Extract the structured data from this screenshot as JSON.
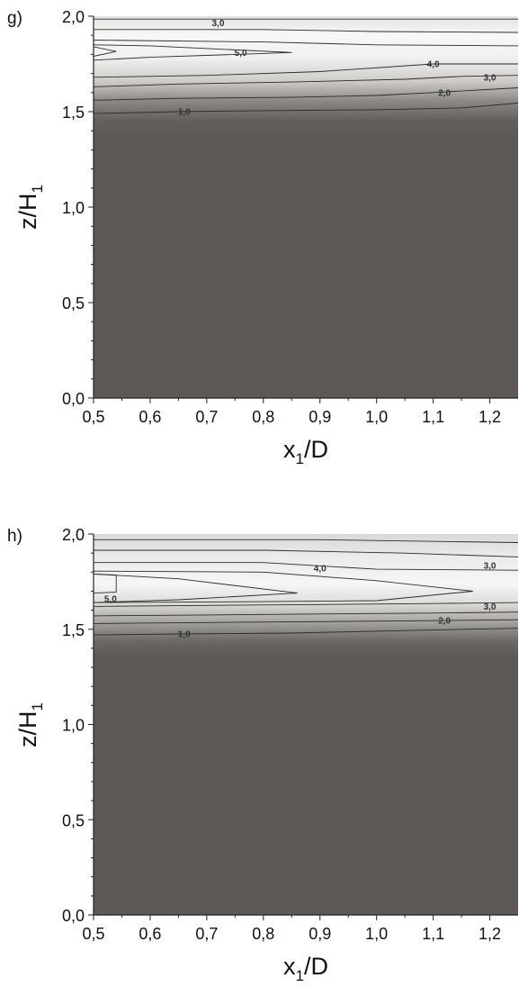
{
  "chart_data": [
    {
      "type": "heatmap",
      "panel_label": "g)",
      "xlabel": {
        "main": "x",
        "sub": "1",
        "rest": "/D"
      },
      "ylabel": {
        "main": "z/H",
        "sub": "1"
      },
      "xlim": [
        0.5,
        1.25
      ],
      "ylim": [
        0.0,
        2.0
      ],
      "x_ticks": [
        0.5,
        0.6,
        0.7,
        0.8,
        0.9,
        1.0,
        1.1,
        1.2
      ],
      "x_tick_labels": [
        "0,5",
        "0,6",
        "0,7",
        "0,8",
        "0,9",
        "1,0",
        "1,1",
        "1,2"
      ],
      "y_ticks": [
        0.0,
        0.5,
        1.0,
        1.5,
        2.0
      ],
      "y_tick_labels": [
        "0,0",
        "0,5",
        "1,0",
        "1,5",
        "2,0"
      ],
      "contours": [
        {
          "level": "1,0",
          "points": [
            [
              0.5,
              1.49
            ],
            [
              0.65,
              1.5
            ],
            [
              0.8,
              1.505
            ],
            [
              1.0,
              1.51
            ],
            [
              1.15,
              1.52
            ],
            [
              1.25,
              1.545
            ]
          ]
        },
        {
          "level": "2,0",
          "points": [
            [
              0.5,
              1.56
            ],
            [
              0.65,
              1.57
            ],
            [
              0.85,
              1.575
            ],
            [
              1.0,
              1.585
            ],
            [
              1.1,
              1.6
            ],
            [
              1.25,
              1.625
            ]
          ]
        },
        {
          "level": "3,0",
          "points": [
            [
              0.5,
              1.63
            ],
            [
              0.65,
              1.645
            ],
            [
              0.85,
              1.655
            ],
            [
              1.05,
              1.67
            ],
            [
              1.15,
              1.685
            ],
            [
              1.25,
              1.69
            ]
          ]
        },
        {
          "level": "4,0",
          "points": [
            [
              0.5,
              1.68
            ],
            [
              0.7,
              1.69
            ],
            [
              0.9,
              1.71
            ],
            [
              1.1,
              1.75
            ],
            [
              1.25,
              1.75
            ]
          ]
        },
        {
          "level": "5,0",
          "points": [
            [
              0.5,
              1.77
            ],
            [
              0.6,
              1.785
            ],
            [
              0.85,
              1.81
            ],
            [
              0.6,
              1.845
            ],
            [
              0.5,
              1.85
            ]
          ]
        },
        {
          "level": "5,0",
          "points": [
            [
              0.5,
              1.79
            ],
            [
              0.54,
              1.815
            ],
            [
              0.5,
              1.84
            ]
          ]
        },
        {
          "level": "4,0",
          "points": [
            [
              0.5,
              1.875
            ],
            [
              0.8,
              1.865
            ],
            [
              1.0,
              1.85
            ],
            [
              1.25,
              1.845
            ]
          ]
        },
        {
          "level": "3,0",
          "points": [
            [
              0.5,
              1.93
            ],
            [
              0.8,
              1.93
            ],
            [
              1.0,
              1.92
            ],
            [
              1.25,
              1.915
            ]
          ]
        },
        {
          "level": "3,0",
          "points": [
            [
              0.5,
              1.985
            ],
            [
              1.25,
              1.985
            ]
          ]
        }
      ],
      "contour_labels": [
        {
          "text": "1,0",
          "x": 0.66,
          "y": 1.5
        },
        {
          "text": "2,0",
          "x": 1.12,
          "y": 1.6
        },
        {
          "text": "3,0",
          "x": 1.2,
          "y": 1.68
        },
        {
          "text": "4,0",
          "x": 1.1,
          "y": 1.75
        },
        {
          "text": "5,0",
          "x": 0.76,
          "y": 1.81
        },
        {
          "text": "3,0",
          "x": 0.72,
          "y": 1.965
        }
      ]
    },
    {
      "type": "heatmap",
      "panel_label": "h)",
      "xlabel": {
        "main": "x",
        "sub": "1",
        "rest": "/D"
      },
      "ylabel": {
        "main": "z/H",
        "sub": "1"
      },
      "xlim": [
        0.5,
        1.25
      ],
      "ylim": [
        0.0,
        2.0
      ],
      "x_ticks": [
        0.5,
        0.6,
        0.7,
        0.8,
        0.9,
        1.0,
        1.1,
        1.2
      ],
      "x_tick_labels": [
        "0,5",
        "0,6",
        "0,7",
        "0,8",
        "0,9",
        "1,0",
        "1,1",
        "1,2"
      ],
      "y_ticks": [
        0.0,
        0.5,
        1.0,
        1.5,
        2.0
      ],
      "y_tick_labels": [
        "0,0",
        "0,5",
        "1,0",
        "1,5",
        "2,0"
      ],
      "contours": [
        {
          "level": "1,0",
          "points": [
            [
              0.5,
              1.47
            ],
            [
              0.65,
              1.475
            ],
            [
              0.85,
              1.48
            ],
            [
              1.0,
              1.49
            ],
            [
              1.15,
              1.5
            ],
            [
              1.25,
              1.505
            ]
          ]
        },
        {
          "level": "2,0",
          "points": [
            [
              0.5,
              1.53
            ],
            [
              0.7,
              1.535
            ],
            [
              0.9,
              1.54
            ],
            [
              1.1,
              1.545
            ],
            [
              1.25,
              1.55
            ]
          ]
        },
        {
          "level": "3,0",
          "points": [
            [
              0.5,
              1.57
            ],
            [
              0.7,
              1.575
            ],
            [
              0.9,
              1.58
            ],
            [
              1.1,
              1.585
            ],
            [
              1.25,
              1.59
            ]
          ]
        },
        {
          "level": "3,0",
          "points": [
            [
              0.5,
              1.62
            ],
            [
              0.7,
              1.625
            ],
            [
              0.9,
              1.63
            ],
            [
              1.1,
              1.635
            ],
            [
              1.25,
              1.64
            ]
          ]
        },
        {
          "level": "4,0",
          "points": [
            [
              0.5,
              1.64
            ],
            [
              0.65,
              1.655
            ],
            [
              0.86,
              1.69
            ],
            [
              0.65,
              1.765
            ],
            [
              0.5,
              1.79
            ]
          ]
        },
        {
          "level": "5,0",
          "points": [
            [
              0.5,
              1.69
            ],
            [
              0.54,
              1.695
            ],
            [
              0.54,
              1.785
            ],
            [
              0.5,
              1.79
            ]
          ]
        },
        {
          "level": "3,0",
          "points": [
            [
              0.5,
              1.805
            ],
            [
              0.8,
              1.8
            ],
            [
              1.0,
              1.755
            ],
            [
              1.17,
              1.7
            ],
            [
              1.0,
              1.65
            ],
            [
              0.8,
              1.645
            ],
            [
              0.5,
              1.64
            ]
          ]
        },
        {
          "level": "3,0",
          "points": [
            [
              0.5,
              1.85
            ],
            [
              0.8,
              1.85
            ],
            [
              1.0,
              1.815
            ],
            [
              1.25,
              1.81
            ]
          ]
        },
        {
          "level": "3,0",
          "points": [
            [
              0.5,
              1.915
            ],
            [
              0.8,
              1.915
            ],
            [
              1.05,
              1.9
            ],
            [
              1.25,
              1.88
            ]
          ]
        },
        {
          "level": "3,0",
          "points": [
            [
              0.5,
              1.97
            ],
            [
              0.9,
              1.97
            ],
            [
              1.25,
              1.955
            ]
          ]
        }
      ],
      "contour_labels": [
        {
          "text": "1,0",
          "x": 0.66,
          "y": 1.475
        },
        {
          "text": "2,0",
          "x": 1.12,
          "y": 1.545
        },
        {
          "text": "3,0",
          "x": 1.2,
          "y": 1.62
        },
        {
          "text": "5,0",
          "x": 0.53,
          "y": 1.66
        },
        {
          "text": "4,0",
          "x": 0.9,
          "y": 1.82
        },
        {
          "text": "3,0",
          "x": 1.2,
          "y": 1.835
        }
      ]
    }
  ],
  "colors": {
    "dark_field": "#5d5955",
    "light_field": "#f5f5f3",
    "contour_line": "#2b2b2b",
    "axis": "#222222"
  }
}
